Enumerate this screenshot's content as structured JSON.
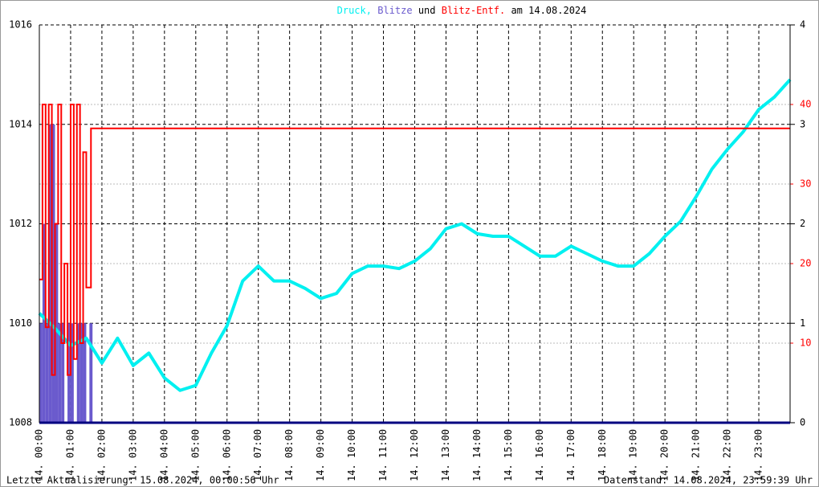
{
  "chart_data": {
    "type": "line",
    "title_join": "und",
    "title_suffix": "am 14.08.2024",
    "xlim": [
      0,
      24
    ],
    "xticks": [
      {
        "value": 0,
        "label": "14. 00:00"
      },
      {
        "value": 1,
        "label": "14. 01:00"
      },
      {
        "value": 2,
        "label": "14. 02:00"
      },
      {
        "value": 3,
        "label": "14. 03:00"
      },
      {
        "value": 4,
        "label": "14. 04:00"
      },
      {
        "value": 5,
        "label": "14. 05:00"
      },
      {
        "value": 6,
        "label": "14. 06:00"
      },
      {
        "value": 7,
        "label": "14. 07:00"
      },
      {
        "value": 8,
        "label": "14. 08:00"
      },
      {
        "value": 9,
        "label": "14. 09:00"
      },
      {
        "value": 10,
        "label": "14. 10:00"
      },
      {
        "value": 11,
        "label": "14. 11:00"
      },
      {
        "value": 12,
        "label": "14. 12:00"
      },
      {
        "value": 13,
        "label": "14. 13:00"
      },
      {
        "value": 14,
        "label": "14. 14:00"
      },
      {
        "value": 15,
        "label": "14. 15:00"
      },
      {
        "value": 16,
        "label": "14. 16:00"
      },
      {
        "value": 17,
        "label": "14. 17:00"
      },
      {
        "value": 18,
        "label": "14. 18:00"
      },
      {
        "value": 19,
        "label": "14. 19:00"
      },
      {
        "value": 20,
        "label": "14. 20:00"
      },
      {
        "value": 21,
        "label": "14. 21:00"
      },
      {
        "value": 22,
        "label": "14. 22:00"
      },
      {
        "value": 23,
        "label": "14. 23:00"
      }
    ],
    "ylim": [
      1008,
      1016
    ],
    "yticks": [
      1008,
      1010,
      1012,
      1014,
      1016
    ],
    "y2lim": [
      0,
      4
    ],
    "y2ticks": [
      0,
      1,
      2,
      3,
      4
    ],
    "y3lim": [
      0,
      50
    ],
    "y3ticks": [
      10,
      20,
      30,
      40
    ],
    "y3color": "#ff0000",
    "grid": true,
    "series": [
      {
        "name": "Blitze",
        "color": "#6a5acd",
        "type": "bar",
        "axis": "y2",
        "bar_width": 0.1,
        "x": [
          0,
          0.1,
          0.2,
          0.3,
          0.4,
          0.5,
          0.6,
          0.7,
          0.8,
          0.9,
          1.0,
          1.1,
          1.2,
          1.3,
          1.4,
          1.5,
          1.6
        ],
        "values": [
          1,
          2,
          1,
          3,
          3,
          2,
          1,
          1,
          0,
          1,
          1,
          0,
          1,
          1,
          1,
          0,
          1
        ]
      },
      {
        "name": "Druck,",
        "color": "#00f0f0",
        "type": "line",
        "x": [
          0,
          0.5,
          1,
          1.5,
          2,
          2.5,
          3,
          3.5,
          4,
          4.5,
          5,
          5.5,
          6,
          6.5,
          7,
          7.5,
          8,
          8.5,
          9,
          9.5,
          10,
          10.5,
          11,
          11.5,
          12,
          12.5,
          13,
          13.5,
          14,
          14.5,
          15,
          15.5,
          16,
          16.5,
          17,
          17.5,
          18,
          18.5,
          19,
          19.5,
          20,
          20.5,
          21,
          21.5,
          22,
          22.5,
          23,
          23.5,
          24
        ],
        "values": [
          1010.2,
          1009.9,
          1009.55,
          1009.7,
          1009.2,
          1009.7,
          1009.15,
          1009.4,
          1008.9,
          1008.65,
          1008.75,
          1009.4,
          1009.95,
          1010.85,
          1011.15,
          1010.85,
          1010.85,
          1010.7,
          1010.5,
          1010.6,
          1011.0,
          1011.15,
          1011.15,
          1011.1,
          1011.25,
          1011.5,
          1011.9,
          1012.0,
          1011.8,
          1011.75,
          1011.75,
          1011.55,
          1011.35,
          1011.35,
          1011.55,
          1011.4,
          1011.25,
          1011.15,
          1011.15,
          1011.4,
          1011.75,
          1012.05,
          1012.55,
          1013.1,
          1013.5,
          1013.85,
          1014.3,
          1014.55,
          1014.9
        ]
      },
      {
        "name": "Blitz-Entf.",
        "color": "#ff0000",
        "type": "step",
        "axis": "y3",
        "x": [
          0,
          0.1,
          0.2,
          0.3,
          0.4,
          0.5,
          0.6,
          0.7,
          0.8,
          0.9,
          1.0,
          1.1,
          1.2,
          1.3,
          1.4,
          1.5,
          1.65,
          24
        ],
        "values": [
          18,
          40,
          12,
          40,
          6,
          25,
          40,
          10,
          20,
          6,
          40,
          8,
          40,
          10,
          34,
          17,
          37,
          37
        ]
      }
    ],
    "footer_left": "Letzte Aktualisierung: 15.08.2024, 00:00:56 Uhr",
    "footer_right": "Datenstand: 14.08.2024, 23:59:39 Uhr"
  }
}
